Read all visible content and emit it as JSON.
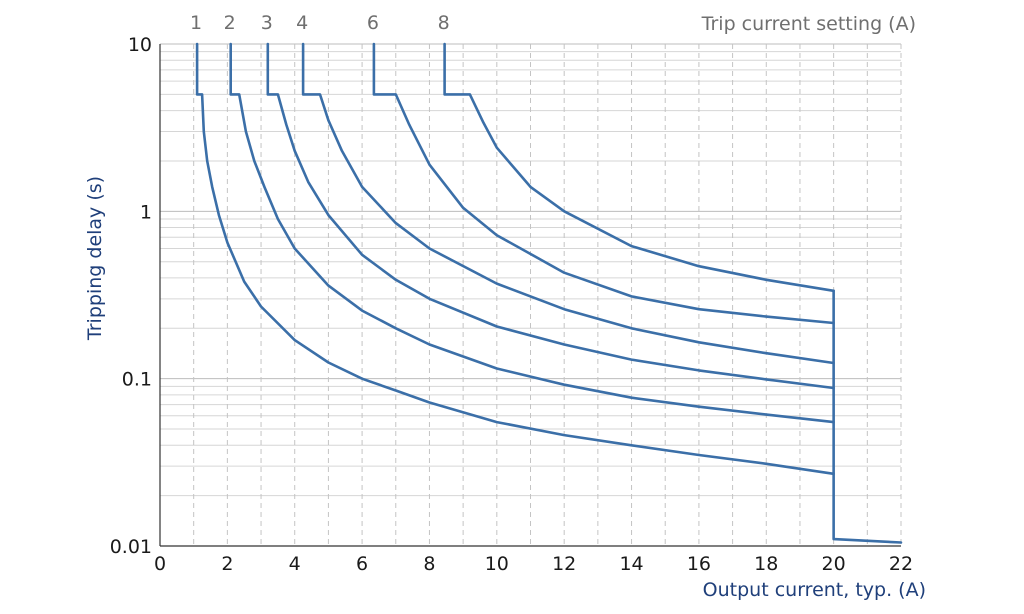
{
  "chart_data": {
    "type": "line",
    "title": "",
    "top_label": "Trip current setting (A)",
    "xlabel": "Output current, typ. (A)",
    "ylabel": "Tripping delay (s)",
    "xlim": [
      0,
      22
    ],
    "ylim": [
      0.01,
      10
    ],
    "yscale": "log",
    "grid": true,
    "x_ticks": [
      "0",
      "2",
      "4",
      "6",
      "8",
      "10",
      "12",
      "14",
      "16",
      "18",
      "20",
      "22"
    ],
    "y_ticks": [
      {
        "value": 10,
        "label": "10"
      },
      {
        "value": 1,
        "label": "1"
      },
      {
        "value": 0.1,
        "label": "0.1"
      },
      {
        "value": 0.01,
        "label": "0.01"
      }
    ],
    "cutoff": {
      "x": 20,
      "floor_y": 0.011,
      "end_x": 22,
      "end_y": 0.0105
    },
    "series": [
      {
        "name": "1",
        "label": "1",
        "x": [
          1.1,
          1.1,
          1.25,
          1.3,
          1.4,
          1.55,
          1.75,
          2.0,
          2.5,
          3.0,
          4.0,
          5.0,
          6.0,
          7.0,
          8.0,
          10.0,
          12.0,
          14.0,
          16.0,
          18.0,
          20.0
        ],
        "y": [
          10,
          5,
          5,
          3.0,
          2.0,
          1.4,
          0.95,
          0.65,
          0.38,
          0.27,
          0.17,
          0.125,
          0.1,
          0.085,
          0.072,
          0.055,
          0.046,
          0.04,
          0.035,
          0.031,
          0.027
        ]
      },
      {
        "name": "2",
        "label": "2",
        "x": [
          2.1,
          2.1,
          2.35,
          2.55,
          2.8,
          3.1,
          3.5,
          4.0,
          5.0,
          6.0,
          7.0,
          8.0,
          10.0,
          12.0,
          14.0,
          16.0,
          18.0,
          20.0
        ],
        "y": [
          10,
          5,
          5,
          3.0,
          2.0,
          1.4,
          0.9,
          0.6,
          0.36,
          0.255,
          0.2,
          0.16,
          0.115,
          0.092,
          0.077,
          0.068,
          0.061,
          0.055
        ]
      },
      {
        "name": "3",
        "label": "3",
        "x": [
          3.2,
          3.2,
          3.5,
          3.75,
          4.0,
          4.4,
          5.0,
          6.0,
          7.0,
          8.0,
          10.0,
          12.0,
          14.0,
          16.0,
          18.0,
          20.0
        ],
        "y": [
          10,
          5,
          5,
          3.3,
          2.3,
          1.5,
          0.95,
          0.55,
          0.39,
          0.3,
          0.205,
          0.16,
          0.13,
          0.112,
          0.099,
          0.088
        ]
      },
      {
        "name": "4",
        "label": "4",
        "x": [
          4.25,
          4.25,
          4.75,
          5.0,
          5.4,
          6.0,
          7.0,
          8.0,
          10.0,
          12.0,
          14.0,
          16.0,
          18.0,
          20.0
        ],
        "y": [
          10,
          5,
          5,
          3.5,
          2.3,
          1.4,
          0.85,
          0.6,
          0.37,
          0.26,
          0.2,
          0.165,
          0.142,
          0.124
        ]
      },
      {
        "name": "6",
        "label": "6",
        "x": [
          6.35,
          6.35,
          7.0,
          7.4,
          8.0,
          9.0,
          10.0,
          12.0,
          14.0,
          16.0,
          18.0,
          20.0
        ],
        "y": [
          10,
          5,
          5,
          3.3,
          1.9,
          1.05,
          0.72,
          0.43,
          0.31,
          0.26,
          0.235,
          0.215
        ]
      },
      {
        "name": "8",
        "label": "8",
        "x": [
          8.45,
          8.45,
          9.2,
          9.6,
          10.0,
          11.0,
          12.0,
          14.0,
          16.0,
          18.0,
          20.0
        ],
        "y": [
          10,
          5,
          5,
          3.4,
          2.4,
          1.4,
          1.0,
          0.62,
          0.47,
          0.39,
          0.335
        ]
      }
    ]
  }
}
